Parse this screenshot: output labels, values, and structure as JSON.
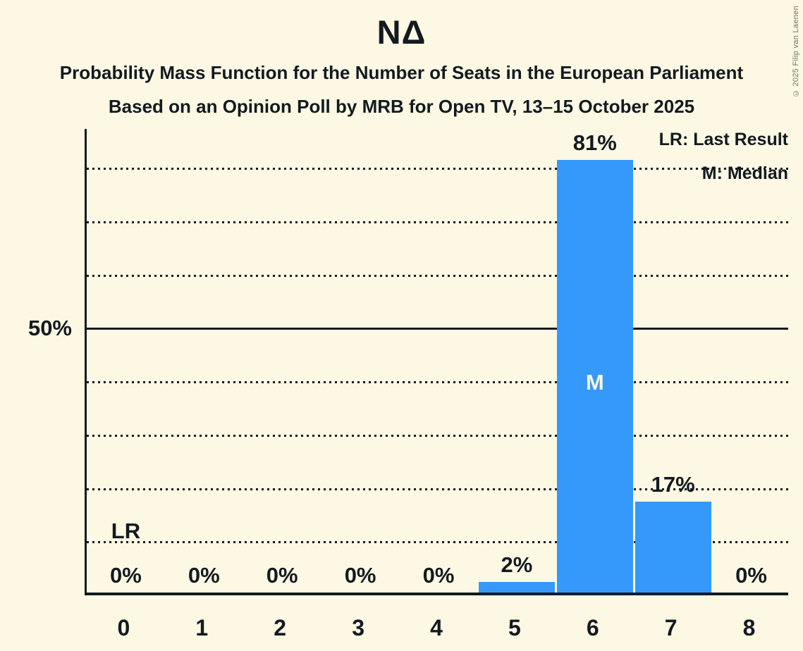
{
  "header": {
    "title": "ΝΔ",
    "subtitle": "Probability Mass Function for the Number of Seats in the European Parliament",
    "poll_details": "Based on an Opinion Poll by MRB for Open TV, 13–15 October 2025"
  },
  "legend": {
    "lr": "LR: Last Result",
    "m": "M: Median"
  },
  "annotations": {
    "last_result": "LR",
    "median": "M"
  },
  "y_axis_label": "50%",
  "copyright": "© 2025 Filip van Laenen",
  "colors": {
    "background": "#FCF8E3",
    "bar": "#3499FA",
    "text": "#131A20",
    "median_text": "#FCF8E3",
    "copyright_text": "#75746A"
  },
  "chart_data": {
    "type": "bar",
    "title": "ΝΔ",
    "categories": [
      "0",
      "1",
      "2",
      "3",
      "4",
      "5",
      "6",
      "7",
      "8"
    ],
    "values": [
      0,
      0,
      0,
      0,
      0,
      2,
      81,
      17,
      0
    ],
    "value_labels": [
      "0%",
      "0%",
      "0%",
      "0%",
      "0%",
      "2%",
      "81%",
      "17%",
      "0%"
    ],
    "xlabel": "",
    "ylabel": "",
    "ylim": [
      0,
      87
    ],
    "y_gridlines_dotted_pct": [
      10,
      20,
      30,
      40,
      60,
      70,
      80
    ],
    "y_line_solid_pct": 50,
    "y_labeled_tick": {
      "pct": 50,
      "label": "50%"
    },
    "median_seat_index": 6,
    "last_result_seat_index": 0,
    "grid": "horizontal-dotted",
    "legend_position": "top-right",
    "legend_entries": [
      "LR: Last Result",
      "M: Median"
    ]
  }
}
